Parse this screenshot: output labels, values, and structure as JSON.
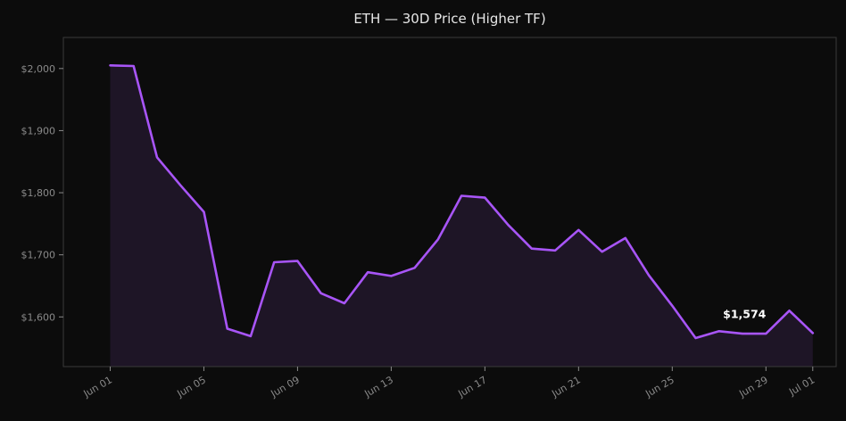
{
  "chart_data": {
    "type": "area",
    "title": "ETH — 30D Price (Higher TF)",
    "xlabel": "",
    "ylabel": "",
    "x": [
      "2023-06-01",
      "2023-06-02",
      "2023-06-03",
      "2023-06-04",
      "2023-06-05",
      "2023-06-06",
      "2023-06-07",
      "2023-06-08",
      "2023-06-09",
      "2023-06-10",
      "2023-06-11",
      "2023-06-12",
      "2023-06-13",
      "2023-06-14",
      "2023-06-15",
      "2023-06-16",
      "2023-06-17",
      "2023-06-18",
      "2023-06-19",
      "2023-06-20",
      "2023-06-21",
      "2023-06-22",
      "2023-06-23",
      "2023-06-24",
      "2023-06-25",
      "2023-06-26",
      "2023-06-27",
      "2023-06-28",
      "2023-06-29",
      "2023-06-30",
      "2023-07-01"
    ],
    "series": [
      {
        "values": [
          2005,
          2004,
          1857,
          1812,
          1769,
          1581,
          1569,
          1688,
          1690,
          1638,
          1622,
          1672,
          1666,
          1679,
          1725,
          1795,
          1792,
          1748,
          1710,
          1707,
          1740,
          1705,
          1727,
          1667,
          1618,
          1566,
          1577,
          1573,
          1573,
          1610,
          1574
        ]
      }
    ],
    "x_ticks": [
      {
        "x": "2023-06-01",
        "label": "Jun 01"
      },
      {
        "x": "2023-06-05",
        "label": "Jun 05"
      },
      {
        "x": "2023-06-09",
        "label": "Jun 09"
      },
      {
        "x": "2023-06-13",
        "label": "Jun 13"
      },
      {
        "x": "2023-06-17",
        "label": "Jun 17"
      },
      {
        "x": "2023-06-21",
        "label": "Jun 21"
      },
      {
        "x": "2023-06-25",
        "label": "Jun 25"
      },
      {
        "x": "2023-06-29",
        "label": "Jun 29"
      },
      {
        "x": "2023-07-01",
        "label": "Jul 01"
      }
    ],
    "y_ticks": [
      {
        "value": 1600,
        "label": "$1,600"
      },
      {
        "value": 1700,
        "label": "$1,700"
      },
      {
        "value": 1800,
        "label": "$1,800"
      },
      {
        "value": 1900,
        "label": "$1,900"
      },
      {
        "value": 2000,
        "label": "$2,000"
      }
    ],
    "xlim": [
      "2023-05-30",
      "2023-07-02"
    ],
    "ylim": [
      1520,
      2050
    ],
    "annotation": {
      "x": "2023-06-29",
      "y": 1574,
      "text": "$1,574"
    },
    "grid": false,
    "legend": "none",
    "colors": {
      "background": "#0c0c0c",
      "line": "#a855f7",
      "fill": "#1e1526",
      "frame": "#3a3a3a",
      "tick_text": "#8a8a8a",
      "title_text": "#e6e6e6",
      "annotation_text": "#ffffff"
    }
  }
}
